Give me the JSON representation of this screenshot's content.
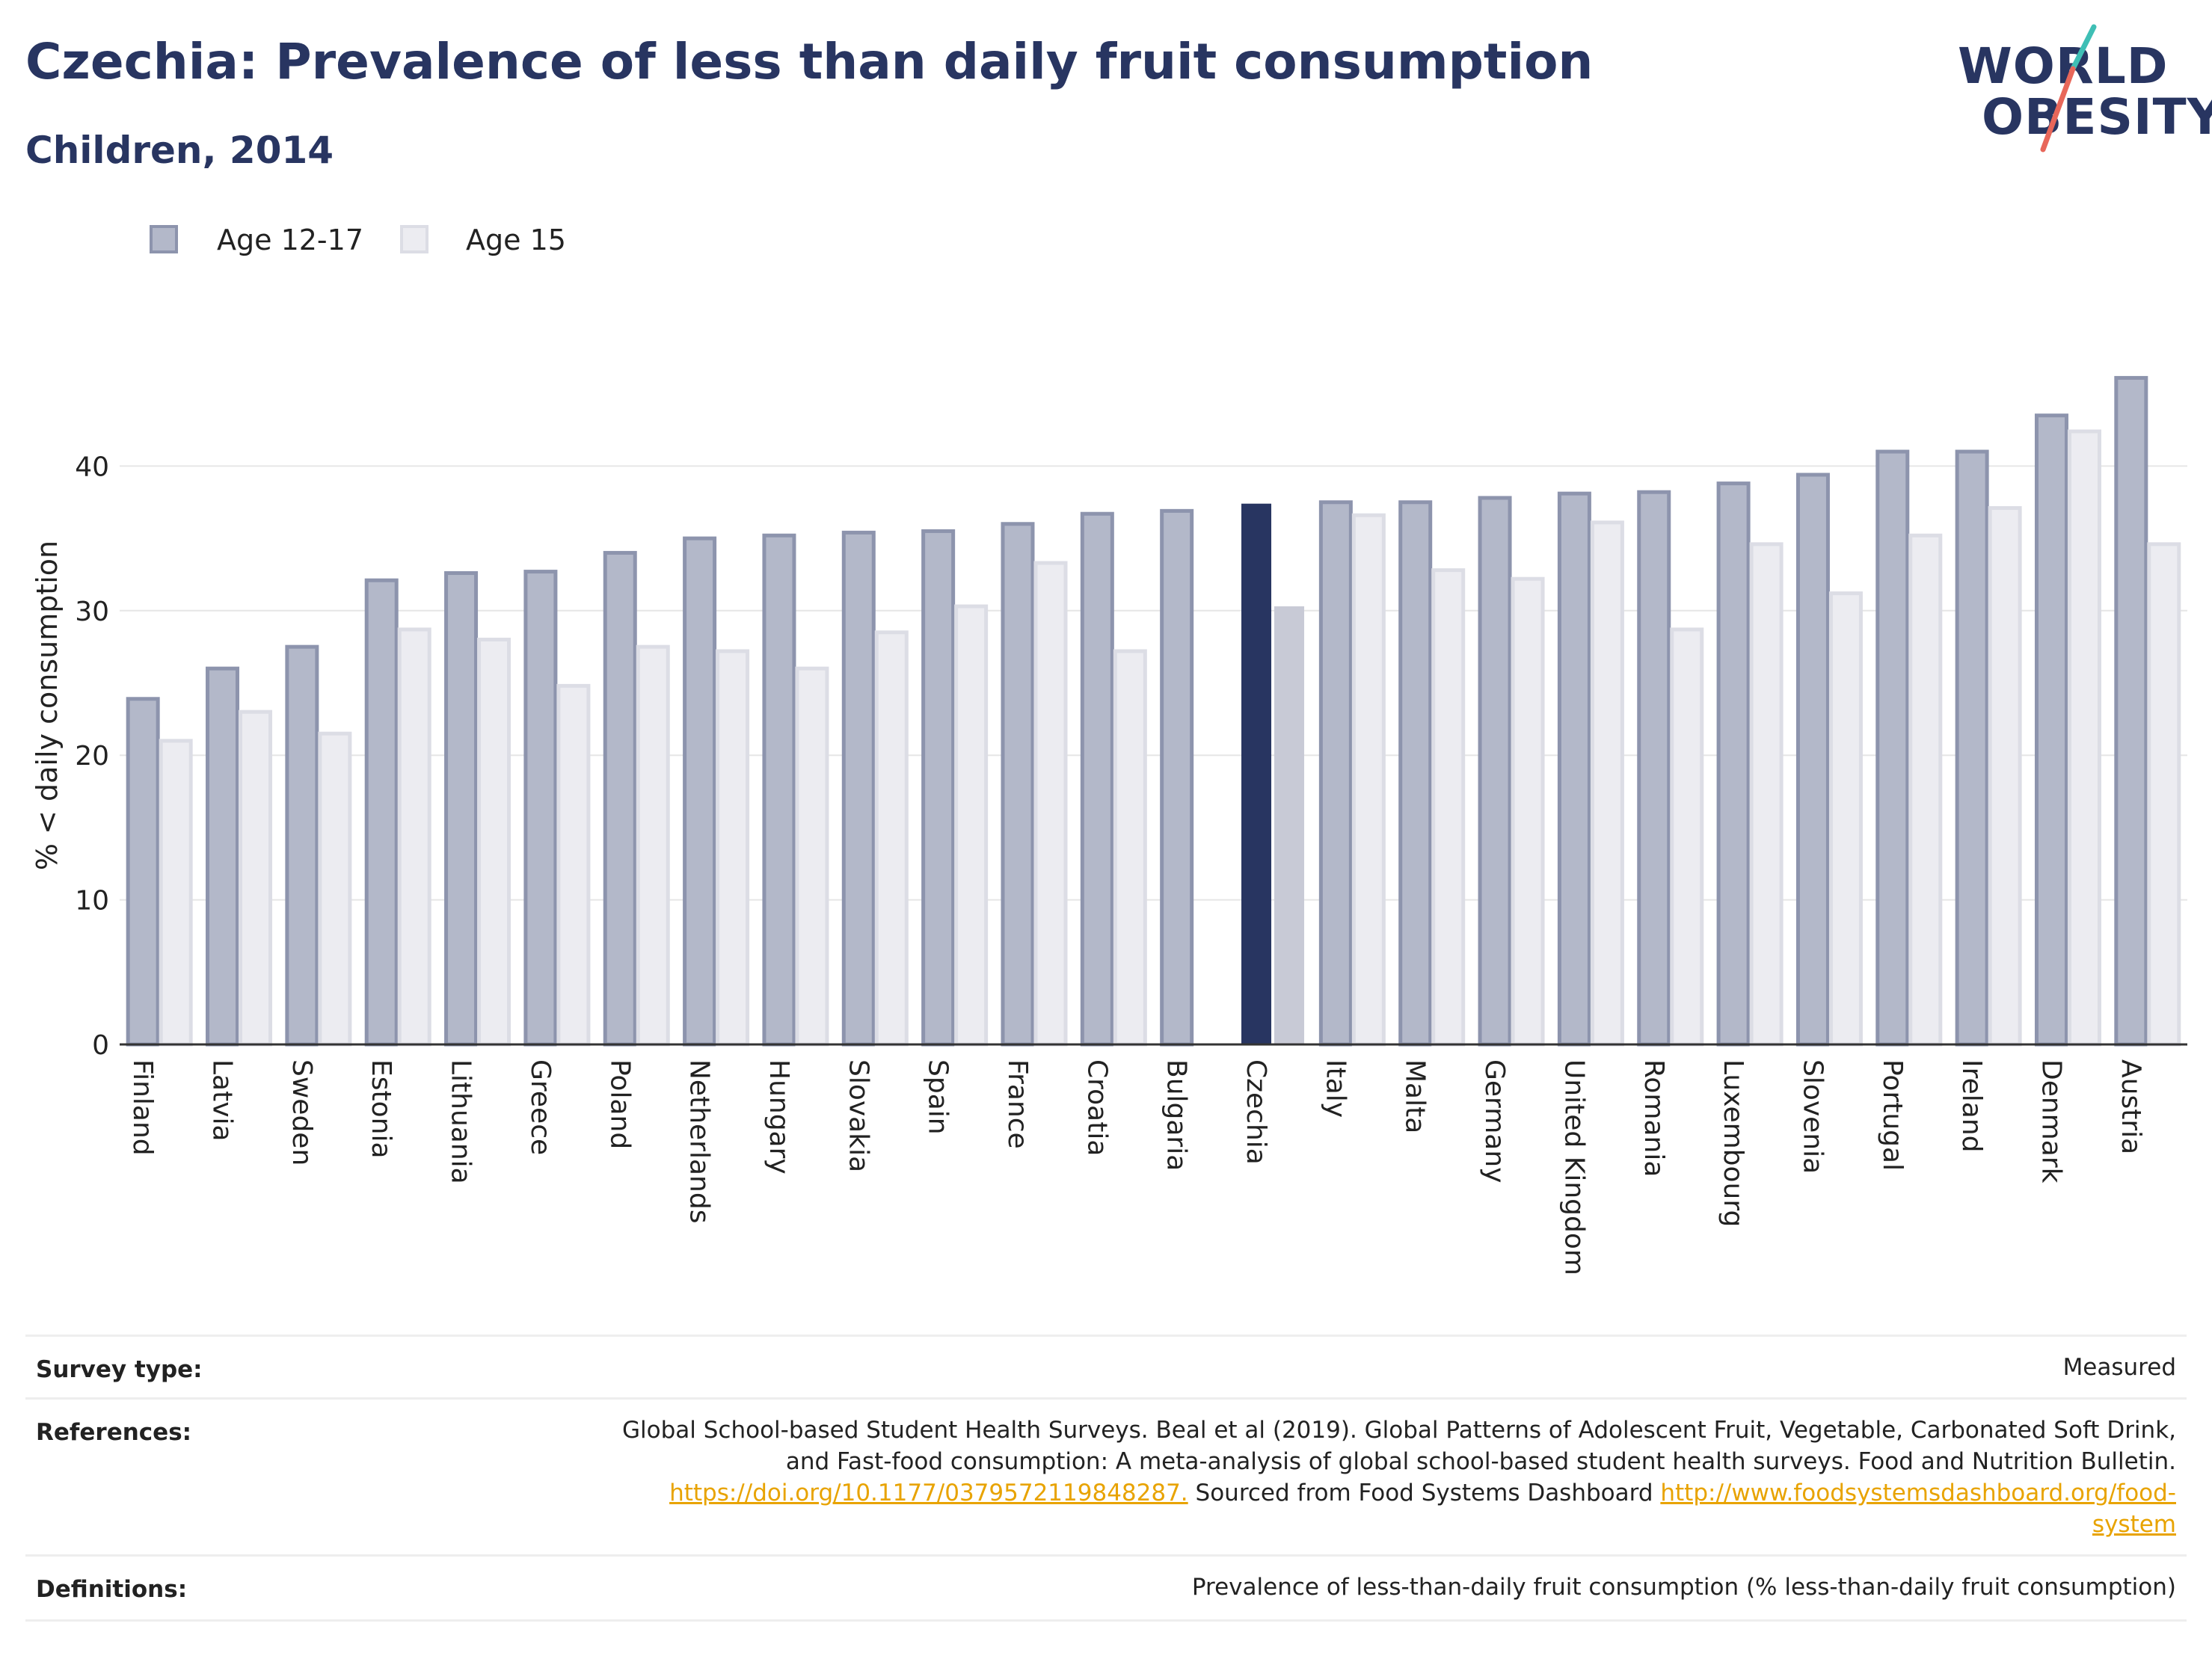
{
  "header": {
    "title": "Czechia: Prevalence of less than daily fruit consumption",
    "subtitle": "Children, 2014"
  },
  "logo": {
    "line1": "WORLD",
    "line2": "OBESITY"
  },
  "colors": {
    "age_12_17": "#b3b8c9",
    "age_12_17_border": "#8d94ad",
    "age_15": "#ececf1",
    "age_15_border": "#dcdde5",
    "highlight_12_17": "#283561",
    "highlight_15": "#c8cad6",
    "title": "#283561",
    "link": "#e8a300",
    "logo_slash_top": "#3fbfb5",
    "logo_slash_bottom": "#e8675a"
  },
  "chart_data": {
    "type": "bar",
    "ylabel": "% < daily consumption",
    "ylim": [
      0,
      50
    ],
    "yticks": [
      0,
      10,
      20,
      30,
      40
    ],
    "highlight": "Czechia",
    "legend_placement": "top-left",
    "categories": [
      "Finland",
      "Latvia",
      "Sweden",
      "Estonia",
      "Lithuania",
      "Greece",
      "Poland",
      "Netherlands",
      "Hungary",
      "Slovakia",
      "Spain",
      "France",
      "Croatia",
      "Bulgaria",
      "Czechia",
      "Italy",
      "Malta",
      "Germany",
      "United Kingdom",
      "Romania",
      "Luxembourg",
      "Slovenia",
      "Portugal",
      "Ireland",
      "Denmark",
      "Austria"
    ],
    "series": [
      {
        "name": "Age 12-17",
        "values": [
          23.9,
          26.0,
          27.5,
          32.1,
          32.6,
          32.7,
          34.0,
          35.0,
          35.2,
          35.4,
          35.5,
          36.0,
          36.7,
          36.9,
          37.4,
          37.5,
          37.5,
          37.8,
          38.1,
          38.2,
          38.8,
          39.4,
          41.0,
          41.0,
          43.5,
          46.1
        ]
      },
      {
        "name": "Age 15",
        "values": [
          21.0,
          23.0,
          21.5,
          28.7,
          28.0,
          24.8,
          27.5,
          27.2,
          26.0,
          28.5,
          30.3,
          33.3,
          27.2,
          null,
          30.3,
          36.6,
          32.8,
          32.2,
          36.1,
          28.7,
          34.6,
          31.2,
          35.2,
          37.1,
          42.4,
          34.6
        ]
      }
    ]
  },
  "footer": {
    "survey_type_label": "Survey type:",
    "survey_type_value": "Measured",
    "references_label": "References:",
    "references_line1": "Global School-based Student Health Surveys. Beal et al (2019). Global Patterns of Adolescent Fruit, Vegetable, Carbonated Soft Drink,",
    "references_line2": "and Fast-food consumption: A meta-analysis of global school-based student health surveys. Food and Nutrition Bulletin.",
    "references_link1": "https://doi.org/10.1177/0379572119848287.",
    "references_mid": " Sourced from Food Systems Dashboard ",
    "references_link2a": "http://www.foodsystemsdashboard.org/food-",
    "references_link2b": "system",
    "definitions_label": "Definitions:",
    "definitions_value": "Prevalence of less-than-daily fruit consumption (% less-than-daily fruit consumption)"
  }
}
